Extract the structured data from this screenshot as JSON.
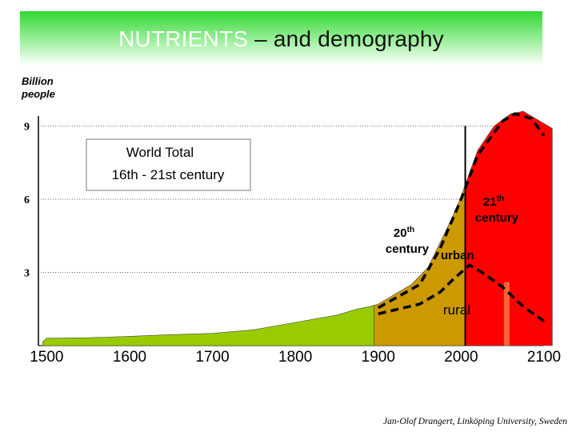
{
  "header": {
    "title_lead": "NUTRIENTS",
    "title_rest": " – and demography"
  },
  "credit": "Jan-Olof Drangert, Linköping University, Sweden",
  "colors": {
    "green": "#99cc00",
    "brown": "#cc9900",
    "red": "#ff0000",
    "orange_marker": "#ff6633",
    "title_green": "#33d633"
  },
  "chart_data": {
    "type": "area",
    "ylabel_line1": "Billion",
    "ylabel_line2": "people",
    "ylim": [
      0,
      9.8
    ],
    "xlim": [
      1490,
      2100
    ],
    "yticks": [
      {
        "value": 9,
        "label": "9"
      },
      {
        "value": 6,
        "label": "6"
      },
      {
        "value": 3,
        "label": "3"
      }
    ],
    "xticks": [
      {
        "value": 1500,
        "label": "1500"
      },
      {
        "value": 1600,
        "label": "1600"
      },
      {
        "value": 1700,
        "label": "1700"
      },
      {
        "value": 1800,
        "label": "1800"
      },
      {
        "value": 1900,
        "label": "1900"
      },
      {
        "value": 2000,
        "label": "2000"
      },
      {
        "value": 2100,
        "label": "2100"
      }
    ],
    "grid": "dotted horizontal at 3, 6, 9",
    "series": [
      {
        "color": "#99cc00",
        "points": [
          [
            1495,
            0.15
          ],
          [
            1500,
            0.3
          ],
          [
            1550,
            0.32
          ],
          [
            1600,
            0.38
          ],
          [
            1650,
            0.45
          ],
          [
            1700,
            0.5
          ],
          [
            1750,
            0.65
          ],
          [
            1800,
            0.95
          ],
          [
            1850,
            1.25
          ],
          [
            1875,
            1.5
          ],
          [
            1890,
            1.6
          ],
          [
            1895,
            1.65
          ],
          [
            1895,
            0
          ],
          [
            1495,
            0
          ]
        ]
      },
      {
        "color": "#cc9900",
        "points": [
          [
            1895,
            1.65
          ],
          [
            1900,
            1.7
          ],
          [
            1920,
            2.1
          ],
          [
            1940,
            2.5
          ],
          [
            1960,
            3.2
          ],
          [
            1980,
            4.6
          ],
          [
            1990,
            5.3
          ],
          [
            2000,
            6.1
          ],
          [
            2005,
            6.6
          ],
          [
            2005,
            0
          ],
          [
            1895,
            0
          ]
        ]
      },
      {
        "color": "#ff0000",
        "points": [
          [
            2005,
            6.6
          ],
          [
            2020,
            8.0
          ],
          [
            2040,
            9.0
          ],
          [
            2060,
            9.5
          ],
          [
            2075,
            9.6
          ],
          [
            2090,
            9.3
          ],
          [
            2110,
            8.9
          ],
          [
            2110,
            0
          ],
          [
            2005,
            0
          ]
        ]
      }
    ],
    "total_line": [
      [
        1900,
        1.55
      ],
      [
        1950,
        2.5
      ],
      [
        1975,
        4.0
      ],
      [
        2000,
        6.0
      ],
      [
        2020,
        7.8
      ],
      [
        2050,
        9.2
      ],
      [
        2065,
        9.5
      ],
      [
        2085,
        9.3
      ],
      [
        2100,
        8.6
      ]
    ],
    "rural_line": [
      [
        1900,
        1.3
      ],
      [
        1925,
        1.5
      ],
      [
        1950,
        1.7
      ],
      [
        1975,
        2.2
      ],
      [
        1990,
        2.7
      ],
      [
        2000,
        3.0
      ],
      [
        2010,
        3.3
      ],
      [
        2025,
        3.0
      ],
      [
        2050,
        2.4
      ],
      [
        2075,
        1.6
      ],
      [
        2100,
        1.0
      ]
    ],
    "markers": [
      {
        "x": 2005,
        "y_from": 0,
        "y_to": 9.0,
        "color": "#000000",
        "width": 2
      },
      {
        "x": 2055,
        "y_from": 0,
        "y_to": 2.6,
        "color": "#ff6633",
        "width": 7
      }
    ],
    "annotations": [
      {
        "lines": [
          "World Total",
          "16th  - 21st century"
        ],
        "type": "box"
      },
      {
        "base": "20",
        "sup": "th",
        "line2": "century",
        "type": "bold"
      },
      {
        "base": "21",
        "sup": "th",
        "line2": "century",
        "type": "bold"
      },
      {
        "text": "urban",
        "type": "plain"
      },
      {
        "text": "rural",
        "type": "plain"
      }
    ]
  }
}
